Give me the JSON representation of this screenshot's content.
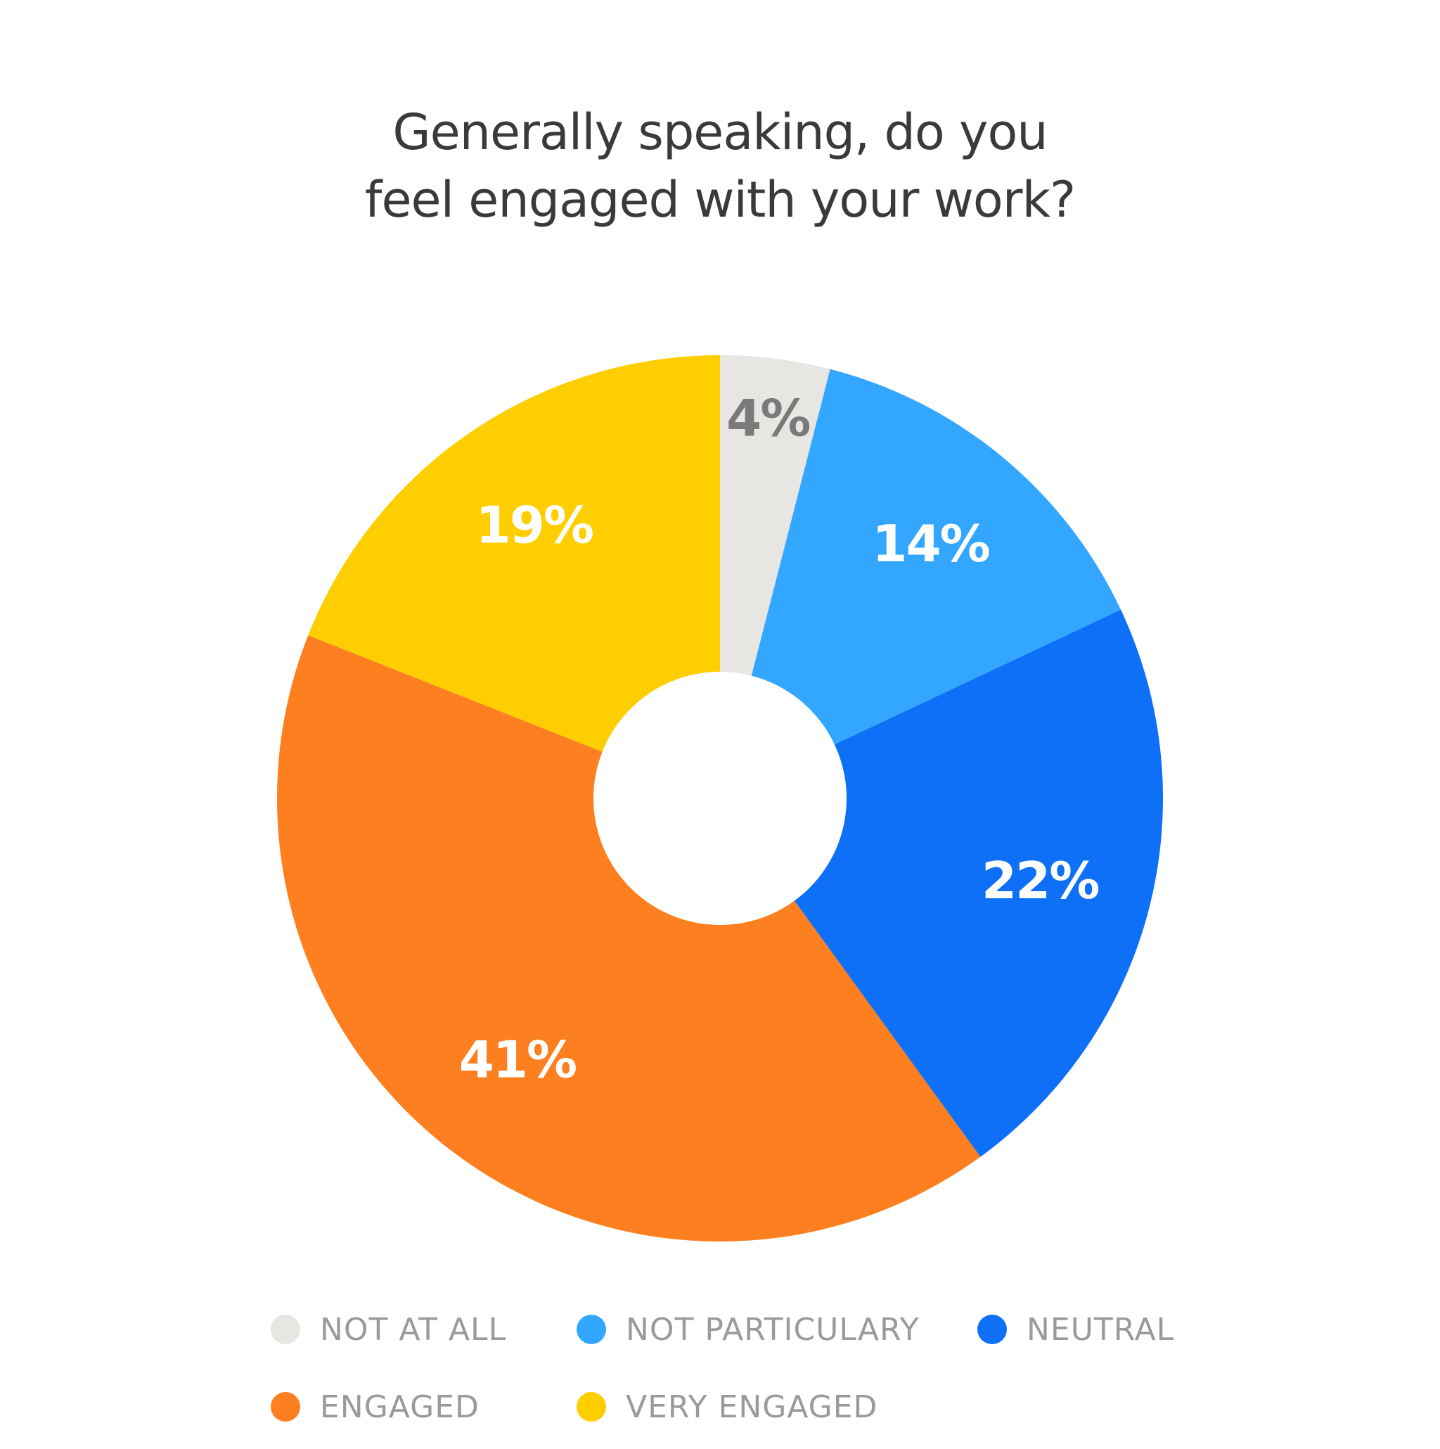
{
  "chart_data": {
    "type": "pie",
    "title_lines": [
      "Generally speaking, do you",
      "feel engaged with your work?"
    ],
    "categories": [
      "NOT AT ALL",
      "NOT PARTICULARY",
      "NEUTRAL",
      "ENGAGED",
      "VERY ENGAGED"
    ],
    "values": [
      4,
      14,
      22,
      41,
      19
    ],
    "value_labels": [
      "4%",
      "14%",
      "22%",
      "41%",
      "19%"
    ],
    "colors": [
      "#e8e6e3",
      "#33a7ff",
      "#0e70f7",
      "#fd7f1f",
      "#fece00"
    ],
    "label_colors": [
      "#7a7a7a",
      "#ffffff",
      "#ffffff",
      "#ffffff",
      "#ffffff"
    ],
    "donut": true,
    "legend_placement": "bottom"
  }
}
